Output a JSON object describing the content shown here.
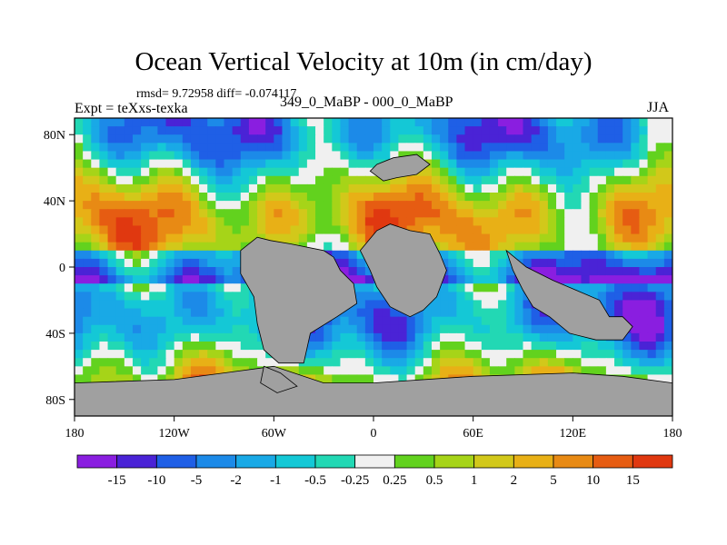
{
  "chart_data": {
    "type": "heatmap",
    "title": "Ocean Vertical Velocity at 10m (in cm/day)",
    "stats_text": "rmsd= 9.72958 diff= -0.074117",
    "left_label": "Expt = teXxs-texka",
    "center_label": "349_0_MaBP - 000_0_MaBP",
    "right_label": "JJA",
    "x_ticks": [
      {
        "value": -180,
        "label": "180"
      },
      {
        "value": -120,
        "label": "120W"
      },
      {
        "value": -60,
        "label": "60W"
      },
      {
        "value": 0,
        "label": "0"
      },
      {
        "value": 60,
        "label": "60E"
      },
      {
        "value": 120,
        "label": "120E"
      },
      {
        "value": 180,
        "label": "180"
      }
    ],
    "y_ticks": [
      {
        "value": 80,
        "label": "80N"
      },
      {
        "value": 40,
        "label": "40N"
      },
      {
        "value": 0,
        "label": "0"
      },
      {
        "value": -40,
        "label": "40S"
      },
      {
        "value": -80,
        "label": "80S"
      }
    ],
    "xlim": [
      -180,
      180
    ],
    "ylim": [
      -90,
      90
    ],
    "colorbar": {
      "labels": [
        "-15",
        "-10",
        "-5",
        "-2",
        "-1",
        "-0.5",
        "-0.25",
        "0.25",
        "0.5",
        "1",
        "2",
        "5",
        "10",
        "15"
      ],
      "colors": [
        "#8a1ee0",
        "#4a23d6",
        "#1f5fe6",
        "#1c8ae8",
        "#19a9e6",
        "#14c8d6",
        "#22d8b4",
        "#f0f0f0",
        "#62d21e",
        "#a6d418",
        "#d2c81a",
        "#e8b016",
        "#e88a14",
        "#e65c12",
        "#e03810"
      ]
    },
    "land_color": "#a0a0a0"
  }
}
